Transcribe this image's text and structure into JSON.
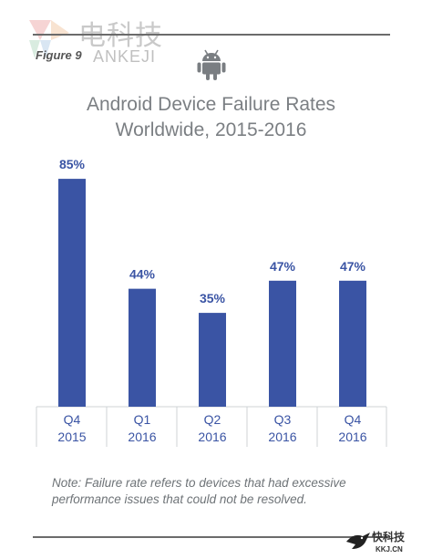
{
  "watermark": {
    "cn": "电科技",
    "latin": "ANKEJI"
  },
  "figure_label": "Figure 9",
  "title_line1": "Android Device Failure Rates",
  "title_line2": "Worldwide, 2015-2016",
  "note": "Note: Failure rate refers to devices that had excessive performance issues that could not be resolved.",
  "corner_logo": {
    "cn": "快科技",
    "latin": "KKJ.CN"
  },
  "colors": {
    "bar": "#3a54a4",
    "label": "#3a54a4",
    "axis_label": "#3a54a4",
    "title": "#7b7f83",
    "android": "#7a7e82"
  },
  "chart_data": {
    "type": "bar",
    "categories": [
      [
        "Q4",
        "2015"
      ],
      [
        "Q1",
        "2016"
      ],
      [
        "Q2",
        "2016"
      ],
      [
        "Q3",
        "2016"
      ],
      [
        "Q4",
        "2016"
      ]
    ],
    "values": [
      85,
      44,
      35,
      47,
      47
    ],
    "data_labels": [
      "85%",
      "44%",
      "35%",
      "47%",
      "47%"
    ],
    "title": "Android Device Failure Rates Worldwide, 2015-2016",
    "xlabel": "",
    "ylabel": "",
    "ylim": [
      0,
      100
    ],
    "grid": false,
    "legend": "none"
  }
}
